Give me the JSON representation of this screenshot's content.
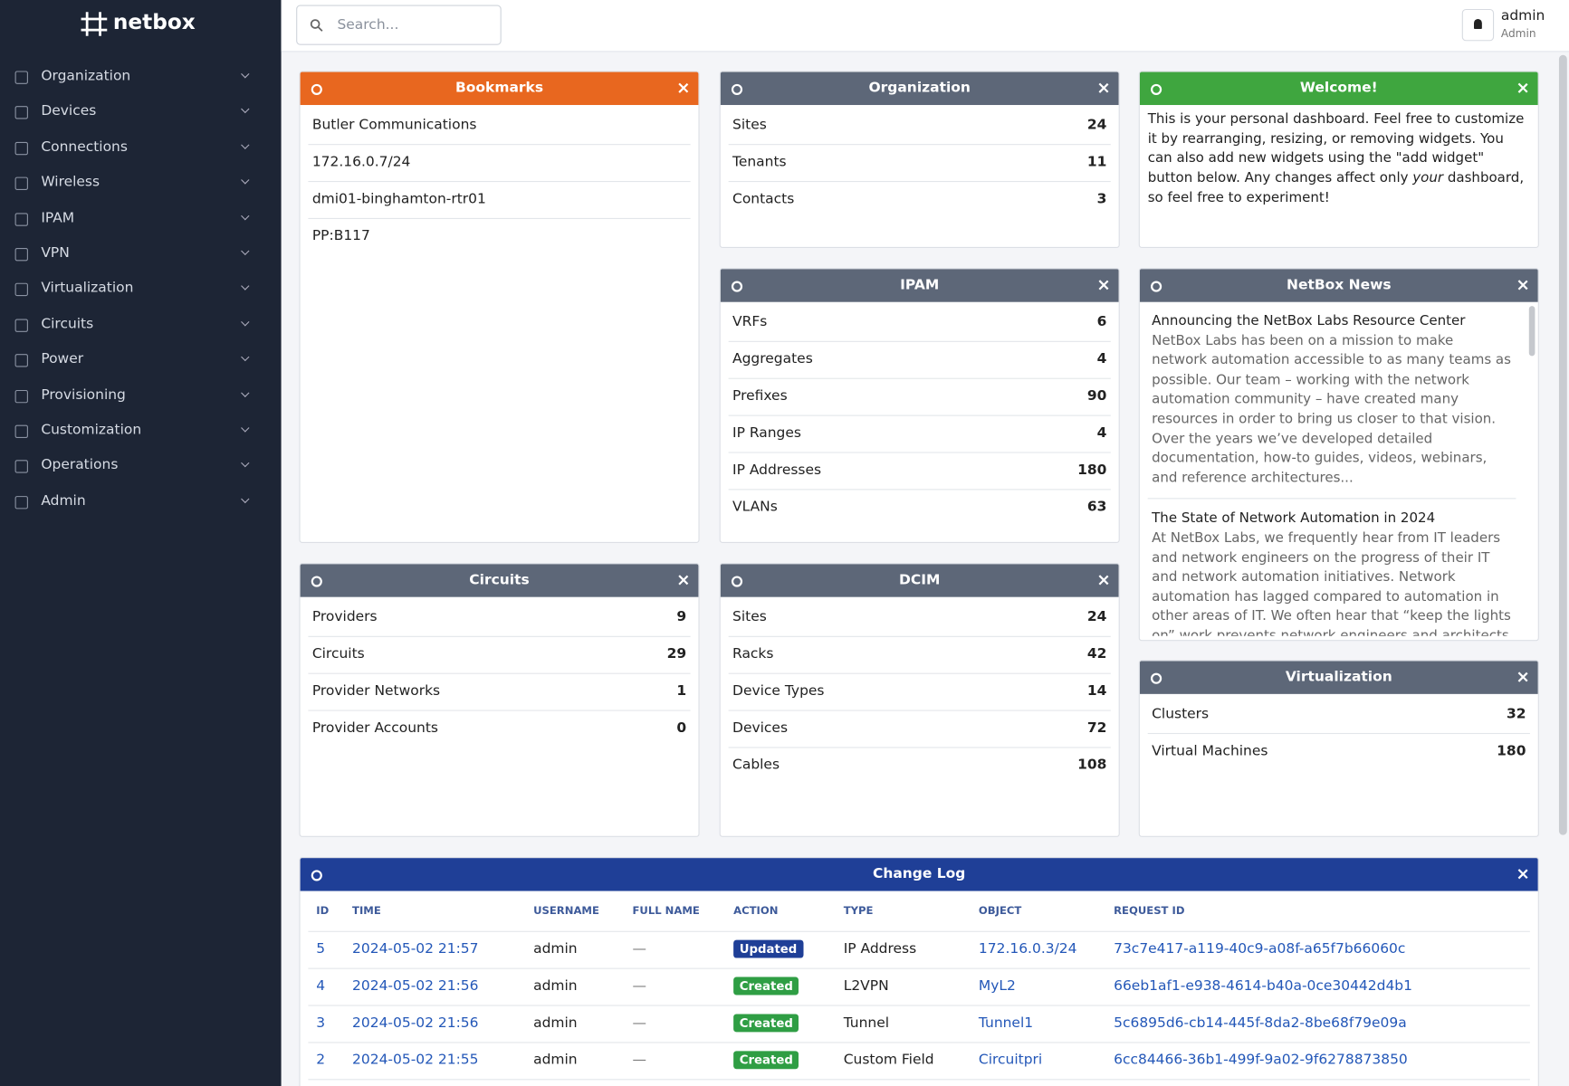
{
  "sidebar": {
    "brand": "netbox",
    "menu": [
      "Organization",
      "Devices",
      "Connections",
      "Wireless",
      "IPAM",
      "VPN",
      "Virtualization",
      "Circuits",
      "Power",
      "Provisioning",
      "Customization",
      "Operations",
      "Admin"
    ]
  },
  "header": {
    "search_placeholder": "Search...",
    "user": "admin",
    "role": "Admin"
  },
  "widgets": [
    {
      "title": "Bookmarks",
      "items": [
        "Butler Communications",
        "172.16.0.7/24",
        "dmi01-binghamton-rtr01",
        "PP:B117"
      ]
    },
    {
      "title": "Organization",
      "rows": [
        {
          "label": "Sites",
          "count": 24
        },
        {
          "label": "Tenants",
          "count": 11
        },
        {
          "label": "Contacts",
          "count": 3
        }
      ]
    },
    {
      "title": "Welcome!",
      "text": {
        "before": "This is your personal dashboard. Feel free to customize it by rearranging, resizing, or removing widgets. You can also add new widgets using the \"add widget\" button below. Any changes affect only ",
        "emphasis": "your",
        "after": " dashboard, so feel free to experiment!"
      }
    },
    {
      "title": "IPAM",
      "rows": [
        {
          "label": "VRFs",
          "count": 6
        },
        {
          "label": "Aggregates",
          "count": 4
        },
        {
          "label": "Prefixes",
          "count": 90
        },
        {
          "label": "IP Ranges",
          "count": 4
        },
        {
          "label": "IP Addresses",
          "count": 180
        },
        {
          "label": "VLANs",
          "count": 63
        }
      ]
    },
    {
      "title": "NetBox News",
      "news": [
        {
          "title": "Announcing the NetBox Labs Resource Center",
          "body": "NetBox Labs has been on a mission to make network automation accessible to as many teams as possible. Our team – working with the network automation community – have created many resources in order to bring us closer to that vision. Over the years we’ve developed detailed documentation, how-to guides, videos, webinars, and reference architectures..."
        },
        {
          "title": "The State of Network Automation in 2024",
          "body": "At NetBox Labs, we frequently hear from IT leaders and network engineers on the progress of their IT and network automation initiatives. Network automation has lagged compared to automation in other areas of IT. We often hear that “keep the lights on” work prevents network engineers and architects from progressing their network automation strategies."
        }
      ]
    },
    {
      "title": "Circuits",
      "rows": [
        {
          "label": "Providers",
          "count": 9
        },
        {
          "label": "Circuits",
          "count": 29
        },
        {
          "label": "Provider Networks",
          "count": 1
        },
        {
          "label": "Provider Accounts",
          "count": 0
        }
      ]
    },
    {
      "title": "DCIM",
      "rows": [
        {
          "label": "Sites",
          "count": 24
        },
        {
          "label": "Racks",
          "count": 42
        },
        {
          "label": "Device Types",
          "count": 14
        },
        {
          "label": "Devices",
          "count": 72
        },
        {
          "label": "Cables",
          "count": 108
        }
      ]
    },
    {
      "title": "Virtualization",
      "rows": [
        {
          "label": "Clusters",
          "count": 32
        },
        {
          "label": "Virtual Machines",
          "count": 180
        }
      ]
    }
  ],
  "changelog": {
    "title": "Change Log",
    "columns": [
      "ID",
      "TIME",
      "USERNAME",
      "FULL NAME",
      "ACTION",
      "TYPE",
      "OBJECT",
      "REQUEST ID"
    ],
    "rows": [
      [
        "5",
        "2024-05-02 21:57",
        "admin",
        "—",
        "Updated",
        "IP Address",
        "172.16.0.3/24",
        "73c7e417-a119-40c9-a08f-a65f7b66060c"
      ],
      [
        "4",
        "2024-05-02 21:56",
        "admin",
        "—",
        "Created",
        "L2VPN",
        "MyL2",
        "66eb1af1-e938-4614-b40a-0ce30442d4b1"
      ],
      [
        "3",
        "2024-05-02 21:56",
        "admin",
        "—",
        "Created",
        "Tunnel",
        "Tunnel1",
        "5c6895d6-cb14-445f-8da2-8be68f79e09a"
      ],
      [
        "2",
        "2024-05-02 21:55",
        "admin",
        "—",
        "Created",
        "Custom Field",
        "Circuitpri",
        "6cc84466-36b1-499f-9a02-9f6278873850"
      ]
    ]
  }
}
